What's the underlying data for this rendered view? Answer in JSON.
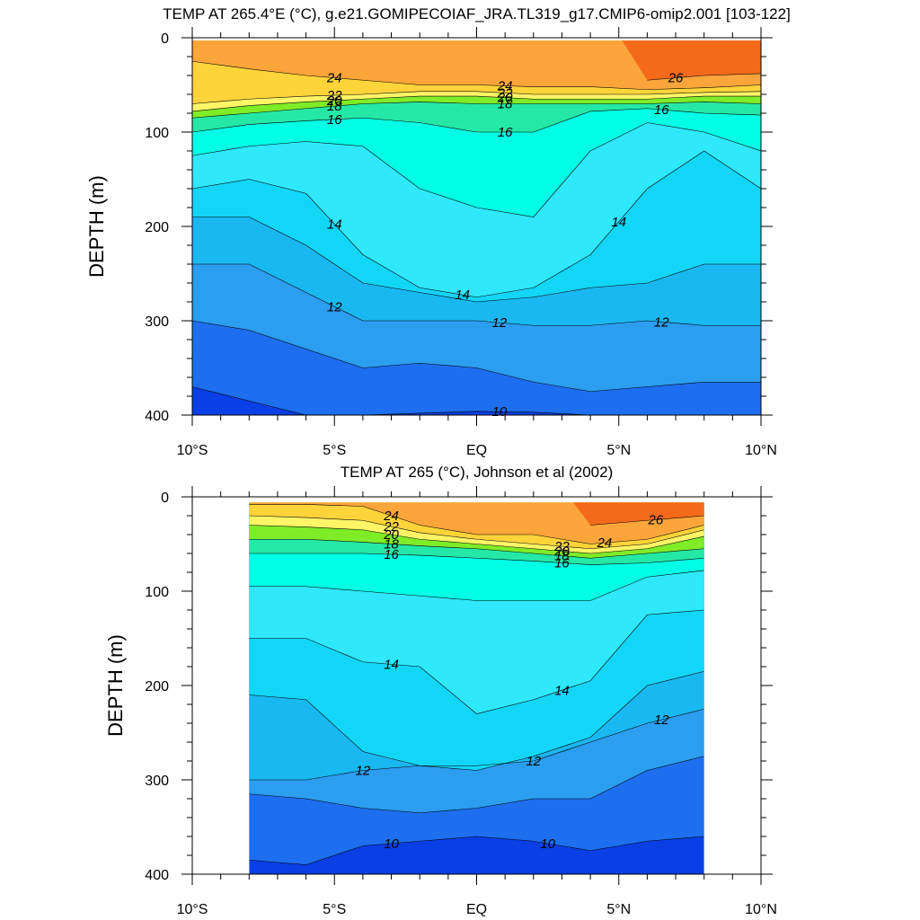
{
  "chart_data": [
    {
      "type": "heatmap",
      "title": "TEMP AT 265.4°E (°C), g.e21.GOMIPECOIAF_JRA.TL319_g17.CMIP6-omip2.001 [103-122]",
      "xlabel": "",
      "ylabel": "DEPTH (m)",
      "xlim": [
        -10,
        10
      ],
      "ylim": [
        400,
        0
      ],
      "x_ticks": [
        "10°S",
        "5°S",
        "EQ",
        "5°N",
        "10°N"
      ],
      "y_ticks": [
        "0",
        "100",
        "200",
        "300",
        "400"
      ],
      "contour_levels": [
        9,
        10,
        11,
        12,
        13,
        14,
        15,
        16,
        17,
        18,
        19,
        20,
        21,
        22,
        23,
        24,
        25,
        26,
        27
      ],
      "data_extent": [
        -10,
        10
      ],
      "lat": [
        -10,
        -8,
        -6,
        -4,
        -2,
        0,
        2,
        4,
        6,
        8,
        10
      ],
      "isotherm_depths": {
        "26": [
          null,
          null,
          null,
          null,
          null,
          null,
          null,
          null,
          45,
          40,
          38
        ],
        "24": [
          25,
          33,
          40,
          45,
          50,
          50,
          52,
          52,
          55,
          53,
          50
        ],
        "22": [
          70,
          65,
          62,
          60,
          57,
          57,
          60,
          60,
          60,
          58,
          57
        ],
        "20": [
          78,
          72,
          68,
          65,
          62,
          62,
          65,
          65,
          65,
          62,
          62
        ],
        "18": [
          85,
          80,
          75,
          70,
          68,
          70,
          70,
          70,
          70,
          68,
          70
        ],
        "16": [
          100,
          92,
          88,
          85,
          90,
          100,
          100,
          78,
          75,
          80,
          82
        ],
        "15": [
          125,
          115,
          110,
          115,
          160,
          180,
          190,
          120,
          90,
          100,
          120
        ],
        "14": [
          160,
          150,
          165,
          230,
          265,
          275,
          265,
          230,
          160,
          120,
          160
        ],
        "13": [
          190,
          190,
          220,
          260,
          270,
          280,
          275,
          265,
          260,
          240,
          240
        ],
        "12": [
          240,
          240,
          270,
          300,
          300,
          300,
          305,
          305,
          300,
          305,
          305
        ],
        "11": [
          300,
          310,
          330,
          350,
          345,
          350,
          365,
          375,
          370,
          365,
          365
        ],
        "10": [
          370,
          385,
          400,
          400,
          398,
          396,
          397,
          400,
          400,
          400,
          400
        ]
      },
      "labels": [
        "26",
        "24",
        "22",
        "20",
        "18",
        "16",
        "14",
        "12",
        "10"
      ]
    },
    {
      "type": "heatmap",
      "title": "TEMP AT 265 (°C), Johnson et al (2002)",
      "xlabel": "",
      "ylabel": "DEPTH (m)",
      "xlim": [
        -10,
        10
      ],
      "ylim": [
        400,
        0
      ],
      "x_ticks": [
        "10°S",
        "5°S",
        "EQ",
        "5°N",
        "10°N"
      ],
      "y_ticks": [
        "0",
        "100",
        "200",
        "300",
        "400"
      ],
      "contour_levels": [
        9,
        10,
        11,
        12,
        13,
        14,
        15,
        16,
        17,
        18,
        19,
        20,
        21,
        22,
        23,
        24,
        25,
        26,
        27
      ],
      "data_extent": [
        -8,
        8
      ],
      "lat": [
        -8,
        -6,
        -4,
        -2,
        0,
        2,
        4,
        6,
        8
      ],
      "isotherm_depths": {
        "26": [
          null,
          null,
          null,
          null,
          null,
          null,
          30,
          25,
          20
        ],
        "24": [
          8,
          8,
          10,
          30,
          40,
          40,
          50,
          45,
          30
        ],
        "22": [
          20,
          22,
          25,
          38,
          45,
          50,
          55,
          50,
          35
        ],
        "20": [
          30,
          32,
          35,
          45,
          50,
          55,
          60,
          55,
          42
        ],
        "18": [
          45,
          45,
          48,
          52,
          55,
          60,
          65,
          60,
          55
        ],
        "16": [
          60,
          60,
          60,
          62,
          65,
          68,
          72,
          70,
          65
        ],
        "15": [
          95,
          95,
          100,
          105,
          110,
          110,
          110,
          85,
          78
        ],
        "14": [
          150,
          150,
          175,
          180,
          230,
          215,
          195,
          125,
          120
        ],
        "13": [
          210,
          215,
          270,
          285,
          290,
          275,
          255,
          200,
          185
        ],
        "12": [
          300,
          300,
          290,
          285,
          285,
          280,
          260,
          240,
          225
        ],
        "11": [
          315,
          320,
          330,
          335,
          330,
          320,
          320,
          290,
          275
        ],
        "10": [
          385,
          390,
          370,
          365,
          360,
          365,
          375,
          365,
          360
        ]
      },
      "labels": [
        "24",
        "22",
        "20",
        "18",
        "16",
        "14",
        "12",
        "10",
        "24",
        "26"
      ]
    }
  ]
}
